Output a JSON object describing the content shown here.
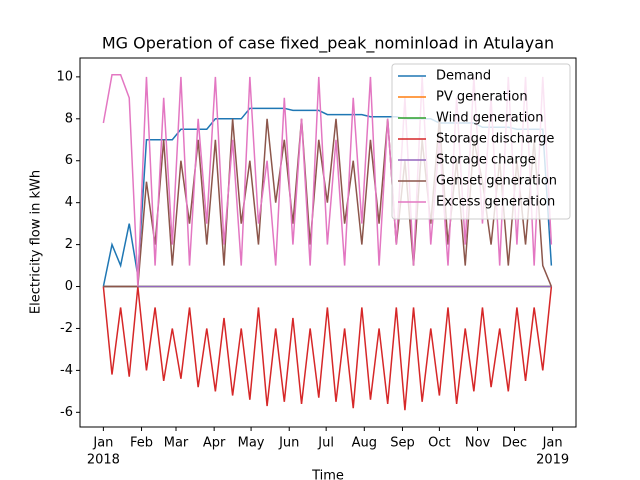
{
  "chart_data": {
    "type": "line",
    "title": "MG Operation of case fixed_peak_nominload in Atulayan",
    "xlabel": "Time",
    "ylabel": "Electricity flow in kWh",
    "x": [
      0,
      7,
      14,
      21,
      28,
      35,
      42,
      49,
      56,
      63,
      70,
      77,
      84,
      91,
      98,
      105,
      112,
      119,
      126,
      133,
      140,
      147,
      154,
      161,
      168,
      175,
      182,
      189,
      196,
      203,
      210,
      217,
      224,
      231,
      238,
      245,
      252,
      259,
      266,
      273,
      280,
      287,
      294,
      301,
      308,
      315,
      322,
      329,
      336,
      343,
      350,
      357,
      364
    ],
    "xlim": [
      -19,
      384
    ],
    "ylim": [
      -6.7,
      10.9
    ],
    "xticks": [
      {
        "value": 0,
        "label": "Jan"
      },
      {
        "value": 31,
        "label": "Feb"
      },
      {
        "value": 59,
        "label": "Mar"
      },
      {
        "value": 90,
        "label": "Apr"
      },
      {
        "value": 120,
        "label": "May"
      },
      {
        "value": 151,
        "label": "Jun"
      },
      {
        "value": 181,
        "label": "Jul"
      },
      {
        "value": 212,
        "label": "Aug"
      },
      {
        "value": 243,
        "label": "Sep"
      },
      {
        "value": 273,
        "label": "Oct"
      },
      {
        "value": 304,
        "label": "Nov"
      },
      {
        "value": 334,
        "label": "Dec"
      },
      {
        "value": 365,
        "label": "Jan"
      }
    ],
    "xtick_years": [
      {
        "value": 0,
        "label": "2018"
      },
      {
        "value": 365,
        "label": "2019"
      }
    ],
    "yticks": [
      -6,
      -4,
      -2,
      0,
      2,
      4,
      6,
      8,
      10
    ],
    "legend": "upper right",
    "series": [
      {
        "name": "Demand",
        "color": "#1f77b4",
        "values": [
          0,
          2,
          1,
          3,
          0.5,
          7,
          7,
          7,
          7,
          7.5,
          7.5,
          7.5,
          7.5,
          8,
          8,
          8,
          8,
          8.5,
          8.5,
          8.5,
          8.5,
          8.5,
          8.4,
          8.4,
          8.4,
          8.4,
          8.2,
          8.2,
          8.2,
          8.2,
          8.2,
          8.1,
          8.1,
          8.1,
          8.1,
          8,
          8,
          8,
          8,
          7.8,
          7.8,
          7.8,
          7.8,
          7.8,
          7.6,
          7.6,
          7.6,
          7.6,
          7.5,
          7.5,
          7.5,
          7.5,
          1
        ]
      },
      {
        "name": "PV generation",
        "color": "#ff7f0e",
        "values": [
          0,
          0,
          0,
          0,
          0,
          0,
          0,
          0,
          0,
          0,
          0,
          0,
          0,
          0,
          0,
          0,
          0,
          0,
          0,
          0,
          0,
          0,
          0,
          0,
          0,
          0,
          0,
          0,
          0,
          0,
          0,
          0,
          0,
          0,
          0,
          0,
          0,
          0,
          0,
          0,
          0,
          0,
          0,
          0,
          0,
          0,
          0,
          0,
          0,
          0,
          0,
          0,
          0
        ]
      },
      {
        "name": "Wind generation",
        "color": "#2ca02c",
        "values": [
          0,
          0,
          0,
          0,
          0,
          0,
          0,
          0,
          0,
          0,
          0,
          0,
          0,
          0,
          0,
          0,
          0,
          0,
          0,
          0,
          0,
          0,
          0,
          0,
          0,
          0,
          0,
          0,
          0,
          0,
          0,
          0,
          0,
          0,
          0,
          0,
          0,
          0,
          0,
          0,
          0,
          0,
          0,
          0,
          0,
          0,
          0,
          0,
          0,
          0,
          0,
          0,
          0
        ]
      },
      {
        "name": "Storage discharge",
        "color": "#d62728",
        "values": [
          0,
          -4.2,
          -1,
          -4.3,
          0,
          -4,
          -1,
          -4.5,
          -2,
          -4.4,
          -1,
          -4.8,
          -2,
          -5,
          -1.5,
          -5.2,
          -2,
          -5.4,
          -1,
          -5.7,
          -2,
          -5.5,
          -1.5,
          -5.6,
          -2,
          -5.3,
          -1,
          -5.5,
          -2,
          -5.8,
          -1,
          -5.4,
          -2,
          -5.6,
          -1,
          -5.9,
          -1,
          -5.5,
          -2,
          -5.2,
          -1,
          -5.6,
          -2,
          -5,
          -1,
          -4.8,
          -2,
          -5,
          -1,
          -4.5,
          -1,
          -4,
          0
        ]
      },
      {
        "name": "Storage charge",
        "color": "#9467bd",
        "values": [
          0,
          0,
          0,
          0,
          0,
          0,
          0,
          0,
          0,
          0,
          0,
          0,
          0,
          0,
          0,
          0,
          0,
          0,
          0,
          0,
          0,
          0,
          0,
          0,
          0,
          0,
          0,
          0,
          0,
          0,
          0,
          0,
          0,
          0,
          0,
          0,
          0,
          0,
          0,
          0,
          0,
          0,
          0,
          0,
          0,
          0,
          0,
          0,
          0,
          0,
          0,
          0,
          0
        ]
      },
      {
        "name": "Genset generation",
        "color": "#8c564b",
        "values": [
          0,
          0,
          0,
          0,
          0,
          5,
          2,
          7,
          1,
          6,
          3,
          7,
          2,
          7,
          1,
          8,
          3,
          6,
          2,
          8,
          4,
          7,
          3,
          8,
          2,
          7,
          4,
          8,
          3,
          6,
          2,
          7,
          3,
          8,
          2,
          6,
          1,
          7,
          3,
          8,
          2,
          6,
          1,
          7,
          5,
          2,
          6,
          1,
          6,
          2,
          7,
          1,
          0
        ]
      },
      {
        "name": "Excess generation",
        "color": "#e377c2",
        "values": [
          7.8,
          10.1,
          10.1,
          9,
          0,
          10,
          1,
          9,
          2,
          10,
          1,
          8,
          3,
          10,
          2,
          7,
          1,
          10,
          3,
          6,
          1,
          9,
          2,
          8,
          1,
          10,
          2,
          7,
          1,
          9,
          3,
          10,
          1,
          8,
          2,
          9,
          1,
          10,
          2,
          7,
          1,
          9,
          2,
          10,
          3,
          9,
          1,
          10,
          2,
          10,
          1,
          10,
          2
        ]
      }
    ]
  }
}
